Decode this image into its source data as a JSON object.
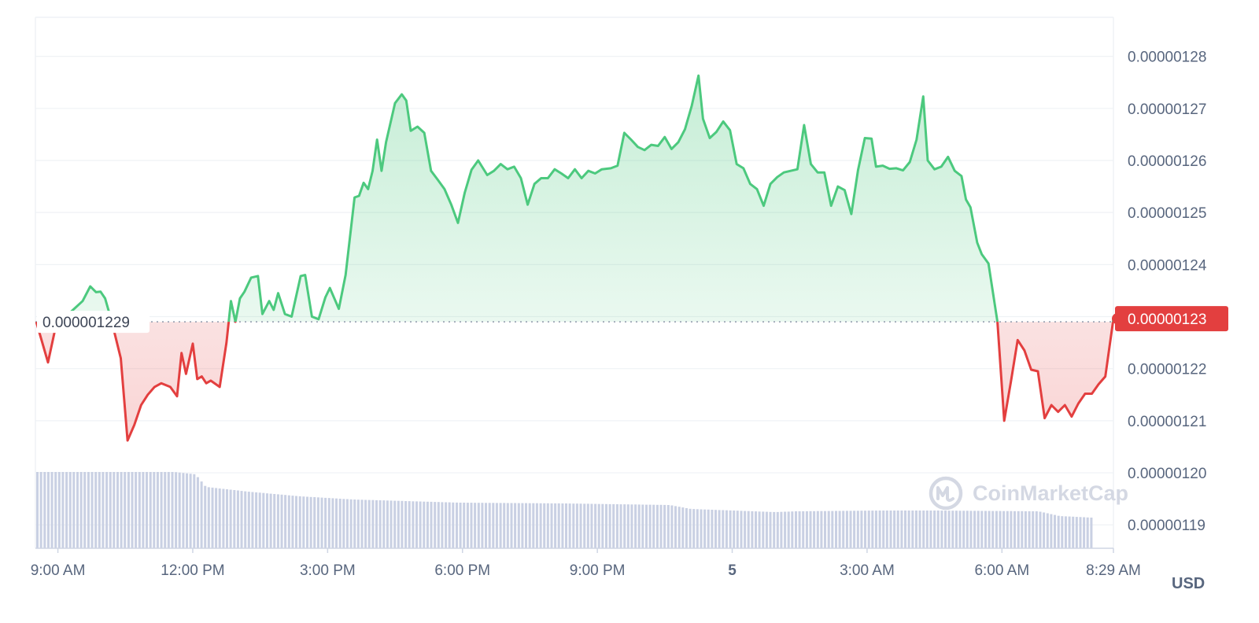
{
  "colors": {
    "up": "#4cc97e",
    "down": "#e33f3f",
    "grid": "#eff2f5",
    "volume": "#c9d0e3",
    "axis_text": "#58667e"
  },
  "watermark": {
    "text": "CoinMarketCap",
    "icon": "coinmarketcap-logo-icon"
  },
  "chart_data": {
    "type": "line",
    "currency": "USD",
    "reference_price": 1.229e-06,
    "reference_label": "0.000001229",
    "current_price": 1.2296e-06,
    "current_label": "0.00000123",
    "ylim": [
      1.1855e-06,
      1.2875e-06
    ],
    "y_ticks": [
      {
        "value": 1.19e-06,
        "label": "0.00000119"
      },
      {
        "value": 1.2e-06,
        "label": "0.00000120"
      },
      {
        "value": 1.21e-06,
        "label": "0.00000121"
      },
      {
        "value": 1.22e-06,
        "label": "0.00000122"
      },
      {
        "value": 1.23e-06,
        "label": "0.00000123"
      },
      {
        "value": 1.24e-06,
        "label": "0.00000124"
      },
      {
        "value": 1.25e-06,
        "label": "0.00000125"
      },
      {
        "value": 1.26e-06,
        "label": "0.00000126"
      },
      {
        "value": 1.27e-06,
        "label": "0.00000127"
      },
      {
        "value": 1.28e-06,
        "label": "0.00000128"
      }
    ],
    "x_range_hours": [
      8.5,
      32.48
    ],
    "x_ticks": [
      {
        "hours": 9,
        "label": "9:00 AM",
        "bold": false
      },
      {
        "hours": 12,
        "label": "12:00 PM",
        "bold": false
      },
      {
        "hours": 15,
        "label": "3:00 PM",
        "bold": false
      },
      {
        "hours": 18,
        "label": "6:00 PM",
        "bold": false
      },
      {
        "hours": 21,
        "label": "9:00 PM",
        "bold": false
      },
      {
        "hours": 24,
        "label": "5",
        "bold": true
      },
      {
        "hours": 27,
        "label": "3:00 AM",
        "bold": false
      },
      {
        "hours": 30,
        "label": "6:00 AM",
        "bold": false
      },
      {
        "hours": 32.48,
        "label": "8:29 AM",
        "bold": false
      }
    ],
    "price_series": [
      [
        8.52,
        1.229
      ],
      [
        8.78,
        1.2212
      ],
      [
        8.98,
        1.2292
      ],
      [
        9.3,
        1.231
      ],
      [
        9.55,
        1.233
      ],
      [
        9.72,
        1.2358
      ],
      [
        9.85,
        1.2347
      ],
      [
        9.95,
        1.2348
      ],
      [
        10.05,
        1.2335
      ],
      [
        10.2,
        1.229
      ],
      [
        10.4,
        1.222
      ],
      [
        10.55,
        1.2062
      ],
      [
        10.7,
        1.2092
      ],
      [
        10.85,
        1.213
      ],
      [
        11.0,
        1.215
      ],
      [
        11.15,
        1.2165
      ],
      [
        11.3,
        1.2172
      ],
      [
        11.5,
        1.2165
      ],
      [
        11.65,
        1.2147
      ],
      [
        11.75,
        1.223
      ],
      [
        11.85,
        1.219
      ],
      [
        12.0,
        1.2248
      ],
      [
        12.1,
        1.218
      ],
      [
        12.2,
        1.2185
      ],
      [
        12.3,
        1.2172
      ],
      [
        12.4,
        1.2177
      ],
      [
        12.6,
        1.2165
      ],
      [
        12.75,
        1.225
      ],
      [
        12.85,
        1.233
      ],
      [
        12.95,
        1.229
      ],
      [
        13.05,
        1.2335
      ],
      [
        13.15,
        1.2348
      ],
      [
        13.3,
        1.2375
      ],
      [
        13.45,
        1.2378
      ],
      [
        13.55,
        1.2305
      ],
      [
        13.7,
        1.233
      ],
      [
        13.8,
        1.2313
      ],
      [
        13.9,
        1.2345
      ],
      [
        14.05,
        1.2305
      ],
      [
        14.2,
        1.23
      ],
      [
        14.4,
        1.2378
      ],
      [
        14.5,
        1.238
      ],
      [
        14.65,
        1.23
      ],
      [
        14.8,
        1.2295
      ],
      [
        14.95,
        1.2337
      ],
      [
        15.05,
        1.2355
      ],
      [
        15.25,
        1.2315
      ],
      [
        15.4,
        1.238
      ],
      [
        15.6,
        1.2529
      ],
      [
        15.7,
        1.2532
      ],
      [
        15.8,
        1.2557
      ],
      [
        15.9,
        1.2545
      ],
      [
        16.0,
        1.258
      ],
      [
        16.1,
        1.264
      ],
      [
        16.2,
        1.258
      ],
      [
        16.3,
        1.2635
      ],
      [
        16.5,
        1.271
      ],
      [
        16.65,
        1.2727
      ],
      [
        16.75,
        1.2715
      ],
      [
        16.85,
        1.2657
      ],
      [
        17.0,
        1.2665
      ],
      [
        17.15,
        1.2653
      ],
      [
        17.3,
        1.258
      ],
      [
        17.45,
        1.2563
      ],
      [
        17.6,
        1.2545
      ],
      [
        17.75,
        1.2515
      ],
      [
        17.9,
        1.248
      ],
      [
        18.05,
        1.2538
      ],
      [
        18.2,
        1.2582
      ],
      [
        18.35,
        1.26
      ],
      [
        18.55,
        1.2572
      ],
      [
        18.7,
        1.258
      ],
      [
        18.85,
        1.2593
      ],
      [
        19.0,
        1.2583
      ],
      [
        19.15,
        1.2588
      ],
      [
        19.3,
        1.2566
      ],
      [
        19.45,
        1.2515
      ],
      [
        19.6,
        1.2555
      ],
      [
        19.75,
        1.2566
      ],
      [
        19.9,
        1.2566
      ],
      [
        20.05,
        1.2583
      ],
      [
        20.2,
        1.2575
      ],
      [
        20.35,
        1.2566
      ],
      [
        20.5,
        1.2583
      ],
      [
        20.65,
        1.2566
      ],
      [
        20.8,
        1.258
      ],
      [
        20.95,
        1.2575
      ],
      [
        21.1,
        1.2583
      ],
      [
        21.3,
        1.2585
      ],
      [
        21.45,
        1.259
      ],
      [
        21.6,
        1.2653
      ],
      [
        21.75,
        1.264
      ],
      [
        21.9,
        1.2626
      ],
      [
        22.05,
        1.262
      ],
      [
        22.2,
        1.263
      ],
      [
        22.35,
        1.2628
      ],
      [
        22.5,
        1.2645
      ],
      [
        22.65,
        1.2622
      ],
      [
        22.8,
        1.2635
      ],
      [
        22.95,
        1.266
      ],
      [
        23.1,
        1.2705
      ],
      [
        23.25,
        1.2763
      ],
      [
        23.35,
        1.268
      ],
      [
        23.5,
        1.2643
      ],
      [
        23.65,
        1.2655
      ],
      [
        23.8,
        1.2675
      ],
      [
        23.95,
        1.2658
      ],
      [
        24.1,
        1.2593
      ],
      [
        24.25,
        1.2585
      ],
      [
        24.4,
        1.2555
      ],
      [
        24.55,
        1.2545
      ],
      [
        24.7,
        1.2513
      ],
      [
        24.85,
        1.2555
      ],
      [
        25.0,
        1.2568
      ],
      [
        25.15,
        1.2577
      ],
      [
        25.3,
        1.258
      ],
      [
        25.45,
        1.2583
      ],
      [
        25.6,
        1.2668
      ],
      [
        25.75,
        1.2593
      ],
      [
        25.9,
        1.2577
      ],
      [
        26.05,
        1.2577
      ],
      [
        26.2,
        1.2513
      ],
      [
        26.35,
        1.255
      ],
      [
        26.5,
        1.2543
      ],
      [
        26.65,
        1.2497
      ],
      [
        26.8,
        1.2582
      ],
      [
        26.95,
        1.2643
      ],
      [
        27.1,
        1.2642
      ],
      [
        27.2,
        1.2588
      ],
      [
        27.35,
        1.259
      ],
      [
        27.5,
        1.2584
      ],
      [
        27.65,
        1.2585
      ],
      [
        27.8,
        1.2581
      ],
      [
        27.95,
        1.2597
      ],
      [
        28.1,
        1.264
      ],
      [
        28.25,
        1.2723
      ],
      [
        28.35,
        1.26
      ],
      [
        28.5,
        1.2583
      ],
      [
        28.65,
        1.2588
      ],
      [
        28.8,
        1.2607
      ],
      [
        28.95,
        1.258
      ],
      [
        29.1,
        1.257
      ],
      [
        29.2,
        1.2525
      ],
      [
        29.3,
        1.251
      ],
      [
        29.45,
        1.2442
      ],
      [
        29.55,
        1.242
      ],
      [
        29.7,
        1.2402
      ],
      [
        29.9,
        1.229
      ],
      [
        30.05,
        1.21
      ],
      [
        30.2,
        1.2175
      ],
      [
        30.35,
        1.2255
      ],
      [
        30.5,
        1.2235
      ],
      [
        30.65,
        1.2198
      ],
      [
        30.8,
        1.2195
      ],
      [
        30.95,
        1.2105
      ],
      [
        31.1,
        1.213
      ],
      [
        31.25,
        1.2117
      ],
      [
        31.4,
        1.213
      ],
      [
        31.55,
        1.2108
      ],
      [
        31.7,
        1.2133
      ],
      [
        31.85,
        1.2152
      ],
      [
        32.0,
        1.2152
      ],
      [
        32.15,
        1.217
      ],
      [
        32.3,
        1.2185
      ],
      [
        32.48,
        1.2296
      ]
    ]
  }
}
